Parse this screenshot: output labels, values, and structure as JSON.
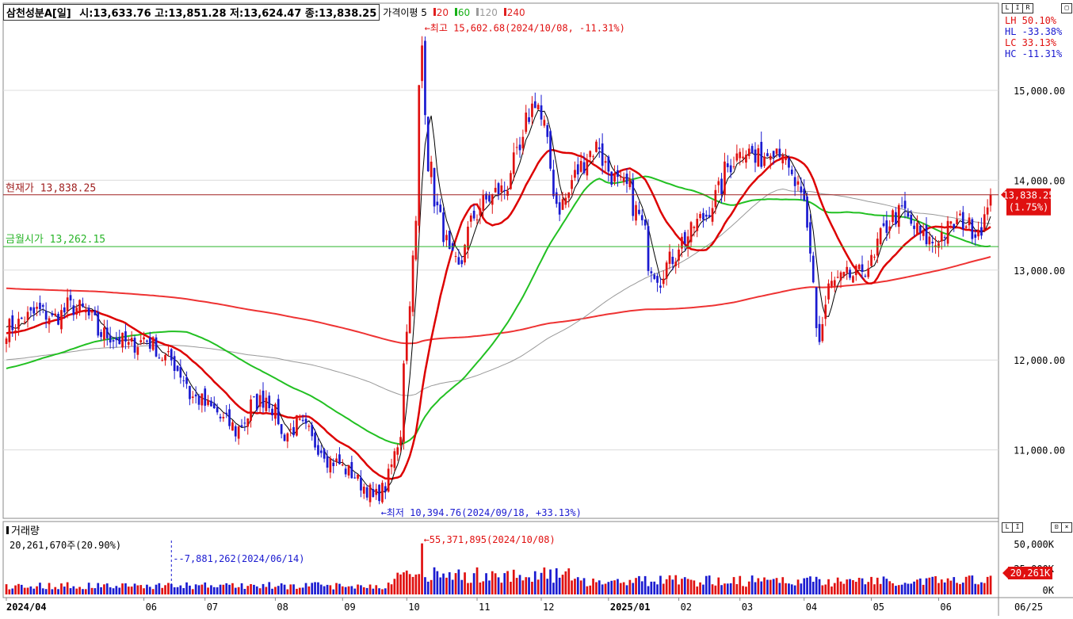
{
  "header": {
    "title": "삼천성분A[일]",
    "ohlc": "시:13,633.76 고:13,851.28 저:13,624.47 종:13,838.25",
    "ma_label": "가격이평 5",
    "ma_periods": [
      "20",
      "60",
      "120",
      "240"
    ],
    "ma_period_colors": [
      "#e02020",
      "#16b016",
      "#9a9a9a",
      "#e02020"
    ]
  },
  "stats": {
    "lh": "LH  50.10%",
    "hl": "HL -33.38%",
    "lc": "LC  33.13%",
    "hc": "HC -11.31%"
  },
  "annotations": {
    "high": "←최고 15,602.68(2024/10/08, -11.31%)",
    "low": "←최저 10,394.76(2024/09/18, +33.13%)",
    "current_price": "현재가 13,838.25",
    "month_open": "금월시가 13,262.15",
    "current_badge_1": "13,838.25",
    "current_badge_2": "(1.75%)"
  },
  "volume_panel": {
    "title": "거래량",
    "current": "20,261,670주(20.90%)",
    "max_label": "←55,371,895(2024/10/08)",
    "marker_label": "--7,881,262(2024/06/14)",
    "ticks": [
      "50,000K",
      "25,000K",
      "0K"
    ],
    "badge": "20,261K"
  },
  "x_axis": {
    "labels": [
      "2024/04",
      "06",
      "07",
      "08",
      "09",
      "10",
      "11",
      "12",
      "2025/01",
      "02",
      "03",
      "04",
      "05",
      "06"
    ],
    "bold": [
      true,
      false,
      false,
      false,
      false,
      false,
      false,
      false,
      true,
      false,
      false,
      false,
      false,
      false
    ],
    "right_label": "06/25"
  },
  "colors": {
    "up": "#e01010",
    "down": "#1a1ad0",
    "ma5": "#000000",
    "ma20": "#dd0000",
    "ma60": "#22c022",
    "ma120": "#999999",
    "ma240": "#ee3333",
    "current_line": "#a02020",
    "open_line": "#2ab52a"
  },
  "chart_data": {
    "type": "candlestick",
    "title": "삼천성분A[일]",
    "y_ticks": [
      11000,
      12000,
      13000,
      14000,
      15000
    ],
    "ylim": [
      10300,
      15650
    ],
    "current_price": 13838.25,
    "month_open": 13262.15,
    "high": {
      "value": 15602.68,
      "date": "2024/10/08"
    },
    "low": {
      "value": 10394.76,
      "date": "2024/09/18"
    },
    "keypoints": [
      [
        "2024-04-01",
        12350
      ],
      [
        "2024-04-08",
        12450
      ],
      [
        "2024-04-15",
        12550
      ],
      [
        "2024-04-22",
        12450
      ],
      [
        "2024-04-29",
        12600
      ],
      [
        "2024-05-06",
        12550
      ],
      [
        "2024-05-13",
        12300
      ],
      [
        "2024-05-20",
        12250
      ],
      [
        "2024-05-27",
        12150
      ],
      [
        "2024-06-03",
        12250
      ],
      [
        "2024-06-10",
        12050
      ],
      [
        "2024-06-17",
        11950
      ],
      [
        "2024-06-24",
        11600
      ],
      [
        "2024-07-01",
        11500
      ],
      [
        "2024-07-08",
        11350
      ],
      [
        "2024-07-15",
        11200
      ],
      [
        "2024-07-22",
        11500
      ],
      [
        "2024-07-29",
        11600
      ],
      [
        "2024-08-05",
        11150
      ],
      [
        "2024-08-12",
        11300
      ],
      [
        "2024-08-19",
        11100
      ],
      [
        "2024-08-26",
        10900
      ],
      [
        "2024-09-02",
        10800
      ],
      [
        "2024-09-09",
        10650
      ],
      [
        "2024-09-16",
        10450
      ],
      [
        "2024-09-23",
        10700
      ],
      [
        "2024-09-27",
        11200
      ],
      [
        "2024-10-01",
        12300
      ],
      [
        "2024-10-04",
        13500
      ],
      [
        "2024-10-08",
        15500
      ],
      [
        "2024-10-10",
        14200
      ],
      [
        "2024-10-14",
        13800
      ],
      [
        "2024-10-18",
        13300
      ],
      [
        "2024-10-24",
        13000
      ],
      [
        "2024-10-31",
        13600
      ],
      [
        "2024-11-07",
        13800
      ],
      [
        "2024-11-14",
        13900
      ],
      [
        "2024-11-21",
        14300
      ],
      [
        "2024-11-28",
        14900
      ],
      [
        "2024-12-03",
        14600
      ],
      [
        "2024-12-06",
        13900
      ],
      [
        "2024-12-10",
        13700
      ],
      [
        "2024-12-16",
        14000
      ],
      [
        "2024-12-20",
        14200
      ],
      [
        "2024-12-27",
        14400
      ],
      [
        "2025-01-03",
        14000
      ],
      [
        "2025-01-10",
        13900
      ],
      [
        "2025-01-15",
        13600
      ],
      [
        "2025-01-20",
        13100
      ],
      [
        "2025-01-24",
        12900
      ],
      [
        "2025-02-03",
        13300
      ],
      [
        "2025-02-10",
        13500
      ],
      [
        "2025-02-17",
        13700
      ],
      [
        "2025-02-24",
        14100
      ],
      [
        "2025-03-03",
        14400
      ],
      [
        "2025-03-10",
        14200
      ],
      [
        "2025-03-17",
        14400
      ],
      [
        "2025-03-21",
        14350
      ],
      [
        "2025-03-26",
        14000
      ],
      [
        "2025-04-01",
        13700
      ],
      [
        "2025-04-04",
        12900
      ],
      [
        "2025-04-08",
        12200
      ],
      [
        "2025-04-11",
        12800
      ],
      [
        "2025-04-18",
        12900
      ],
      [
        "2025-04-25",
        12950
      ],
      [
        "2025-05-02",
        13100
      ],
      [
        "2025-05-09",
        13550
      ],
      [
        "2025-05-16",
        13650
      ],
      [
        "2025-05-23",
        13400
      ],
      [
        "2025-05-30",
        13300
      ],
      [
        "2025-06-05",
        13450
      ],
      [
        "2025-06-12",
        13550
      ],
      [
        "2025-06-18",
        13450
      ],
      [
        "2025-06-24",
        13600
      ],
      [
        "2025-06-25",
        13838
      ]
    ],
    "moving_averages": [
      "5",
      "20",
      "60",
      "120",
      "240"
    ]
  }
}
